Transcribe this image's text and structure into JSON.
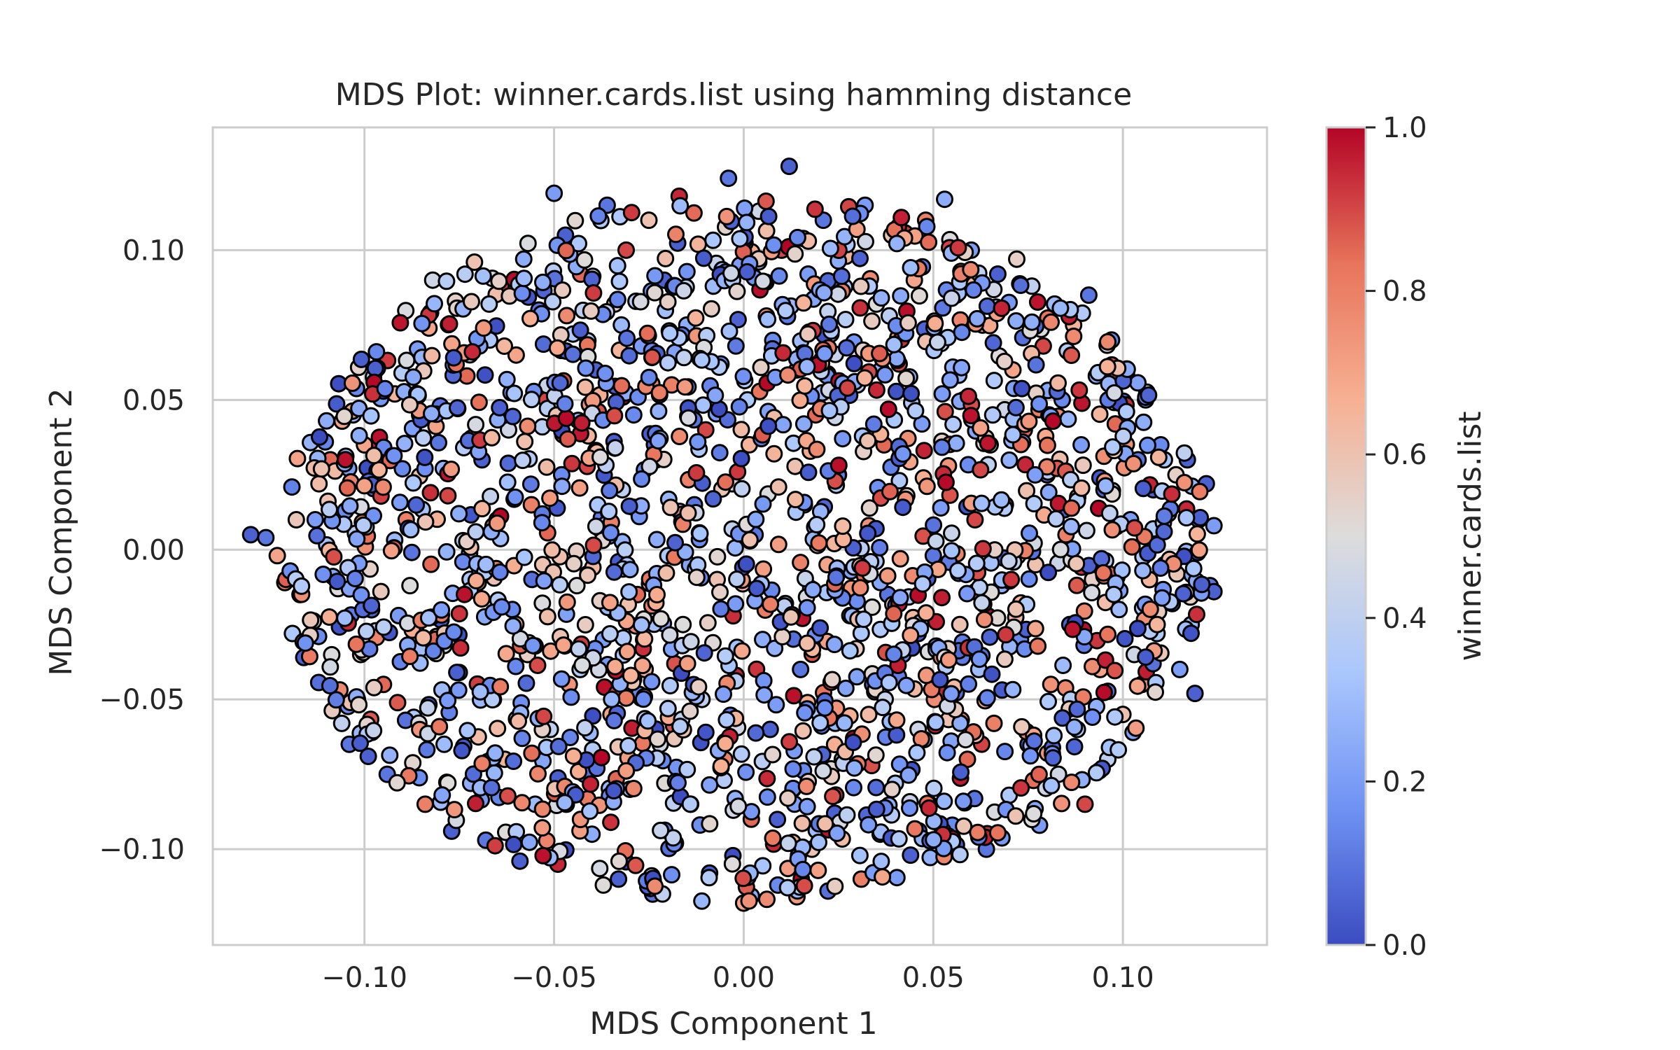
{
  "chart_data": {
    "type": "scatter",
    "title": "MDS Plot: winner.cards.list using hamming distance",
    "xlabel": "MDS Component 1",
    "ylabel": "MDS Component 2",
    "xlim": [
      -0.14,
      0.138
    ],
    "ylim": [
      -0.132,
      0.141
    ],
    "x_ticks": [
      -0.1,
      -0.05,
      0.0,
      0.05,
      0.1
    ],
    "x_tick_labels": [
      "−0.10",
      "−0.05",
      "0.00",
      "0.05",
      "0.10"
    ],
    "y_ticks": [
      -0.1,
      -0.05,
      0.0,
      0.05,
      0.1
    ],
    "y_tick_labels": [
      "−0.10",
      "−0.05",
      "0.00",
      "0.05",
      "0.10"
    ],
    "grid": true,
    "marker_edge_color": "#000000",
    "colorbar": {
      "label": "winner.cards.list",
      "colormap": "coolwarm",
      "range": [
        0,
        1
      ],
      "ticks": [
        0.0,
        0.2,
        0.4,
        0.6,
        0.8,
        1.0
      ],
      "tick_labels": [
        "0.0",
        "0.2",
        "0.4",
        "0.6",
        "0.8",
        "1.0"
      ],
      "stops": [
        "#3b4cc0",
        "#6f92f3",
        "#aac7fd",
        "#dddcdc",
        "#f7b093",
        "#e7745b",
        "#b40426"
      ]
    },
    "point_count_approx": 2000,
    "points": [
      [
        -0.13,
        0.005,
        0.05
      ],
      [
        -0.126,
        0.004,
        0.1
      ],
      [
        -0.123,
        -0.002,
        0.7
      ],
      [
        -0.121,
        -0.011,
        0.8
      ],
      [
        -0.119,
        -0.028,
        0.35
      ],
      [
        -0.117,
        -0.015,
        0.75
      ],
      [
        -0.116,
        -0.036,
        0.05
      ],
      [
        -0.113,
        0.01,
        0.2
      ],
      [
        -0.112,
        0.022,
        0.62
      ],
      [
        -0.11,
        0.043,
        0.25
      ],
      [
        -0.109,
        0.03,
        0.85
      ],
      [
        -0.107,
        -0.013,
        0.5
      ],
      [
        -0.106,
        -0.058,
        0.4
      ],
      [
        -0.105,
        0.013,
        0.15
      ],
      [
        -0.104,
        -0.065,
        0.1
      ],
      [
        -0.103,
        0.045,
        0.3
      ],
      [
        -0.101,
        -0.035,
        0.55
      ],
      [
        -0.1,
        0.035,
        0.7
      ],
      [
        -0.099,
        -0.069,
        0.05
      ],
      [
        -0.097,
        0.06,
        0.4
      ],
      [
        -0.096,
        0.035,
        0.95
      ],
      [
        -0.095,
        -0.045,
        0.85
      ],
      [
        -0.094,
        -0.075,
        0.1
      ],
      [
        -0.092,
        0.052,
        0.65
      ],
      [
        -0.091,
        -0.022,
        0.2
      ],
      [
        -0.09,
        0.027,
        0.15
      ],
      [
        -0.089,
        0.01,
        0.8
      ],
      [
        -0.088,
        -0.012,
        0.5
      ],
      [
        -0.087,
        -0.056,
        0.35
      ],
      [
        -0.086,
        0.067,
        0.2
      ],
      [
        -0.084,
        -0.085,
        0.8
      ],
      [
        -0.083,
        0.074,
        0.7
      ],
      [
        -0.082,
        0.09,
        0.45
      ],
      [
        -0.081,
        -0.029,
        0.65
      ],
      [
        -0.08,
        0.048,
        0.1
      ],
      [
        -0.079,
        -0.065,
        0.3
      ],
      [
        -0.078,
        0.018,
        0.9
      ],
      [
        -0.077,
        -0.094,
        0.05
      ],
      [
        -0.076,
        0.083,
        0.55
      ],
      [
        -0.075,
        -0.041,
        0.15
      ],
      [
        -0.074,
        0.003,
        0.4
      ],
      [
        -0.073,
        0.058,
        0.85
      ],
      [
        -0.072,
        -0.078,
        0.25
      ],
      [
        -0.071,
        0.096,
        0.6
      ],
      [
        -0.07,
        -0.011,
        0.75
      ],
      [
        -0.069,
        0.03,
        0.05
      ],
      [
        -0.068,
        -0.097,
        0.1
      ],
      [
        -0.067,
        0.07,
        0.35
      ],
      [
        -0.066,
        -0.05,
        0.8
      ],
      [
        -0.065,
        0.01,
        0.2
      ],
      [
        -0.064,
        0.088,
        0.9
      ],
      [
        -0.063,
        -0.07,
        0.65
      ],
      [
        -0.062,
        0.04,
        0.45
      ],
      [
        -0.061,
        -0.02,
        0.15
      ],
      [
        -0.06,
        0.065,
        0.7
      ],
      [
        -0.059,
        -0.104,
        0.05
      ],
      [
        -0.058,
        0.097,
        0.25
      ],
      [
        -0.057,
        -0.035,
        0.55
      ],
      [
        -0.056,
        0.015,
        0.8
      ],
      [
        -0.055,
        -0.085,
        0.3
      ],
      [
        -0.054,
        0.08,
        0.1
      ],
      [
        -0.053,
        -0.005,
        0.6
      ],
      [
        -0.052,
        0.05,
        0.9
      ],
      [
        -0.051,
        -0.06,
        0.4
      ],
      [
        -0.05,
        0.119,
        0.2
      ],
      [
        -0.049,
        -0.105,
        0.95
      ],
      [
        -0.048,
        0.025,
        0.15
      ],
      [
        -0.047,
        0.105,
        0.05
      ],
      [
        -0.046,
        -0.045,
        0.75
      ],
      [
        -0.045,
        0.072,
        0.35
      ],
      [
        -0.044,
        -0.012,
        0.5
      ],
      [
        -0.043,
        0.092,
        0.85
      ],
      [
        -0.042,
        -0.075,
        0.1
      ],
      [
        -0.041,
        0.038,
        0.65
      ],
      [
        -0.04,
        -0.095,
        0.25
      ],
      [
        -0.039,
        0.06,
        0.05
      ],
      [
        -0.038,
        0.007,
        0.8
      ],
      [
        -0.037,
        -0.03,
        0.2
      ],
      [
        -0.036,
        0.115,
        0.1
      ],
      [
        -0.035,
        -0.055,
        0.7
      ],
      [
        -0.034,
        0.082,
        0.55
      ],
      [
        -0.033,
        -0.11,
        0.05
      ],
      [
        -0.032,
        0.02,
        0.4
      ],
      [
        -0.031,
        0.1,
        0.9
      ],
      [
        -0.03,
        -0.08,
        0.3
      ],
      [
        -0.029,
        0.045,
        0.15
      ],
      [
        -0.028,
        -0.015,
        0.85
      ],
      [
        -0.027,
        0.068,
        0.2
      ],
      [
        -0.026,
        -0.04,
        0.65
      ],
      [
        -0.025,
        0.11,
        0.6
      ],
      [
        -0.024,
        -0.115,
        0.1
      ],
      [
        -0.023,
        0.03,
        0.75
      ],
      [
        -0.022,
        -0.065,
        0.45
      ],
      [
        -0.021,
        0.09,
        0.05
      ],
      [
        -0.02,
        -0.002,
        0.35
      ],
      [
        -0.019,
        0.055,
        0.8
      ],
      [
        -0.018,
        -0.098,
        0.15
      ],
      [
        -0.017,
        0.118,
        0.95
      ],
      [
        -0.016,
        -0.025,
        0.5
      ],
      [
        -0.015,
        0.075,
        0.25
      ],
      [
        -0.014,
        -0.085,
        0.7
      ],
      [
        -0.013,
        0.015,
        0.1
      ],
      [
        -0.012,
        0.102,
        0.65
      ],
      [
        -0.011,
        -0.05,
        0.4
      ],
      [
        -0.01,
        0.04,
        0.9
      ],
      [
        -0.009,
        -0.108,
        0.05
      ],
      [
        -0.008,
        0.088,
        0.3
      ],
      [
        -0.007,
        -0.01,
        0.6
      ],
      [
        -0.006,
        0.062,
        0.15
      ],
      [
        -0.005,
        -0.07,
        0.8
      ],
      [
        -0.004,
        0.124,
        0.1
      ],
      [
        -0.003,
        0.022,
        0.55
      ],
      [
        -0.002,
        -0.042,
        0.95
      ],
      [
        -0.001,
        0.095,
        0.2
      ],
      [
        0.0,
        -0.118,
        0.7
      ],
      [
        0.001,
        0.05,
        0.35
      ],
      [
        0.002,
        -0.09,
        0.85
      ],
      [
        0.003,
        0.005,
        0.1
      ],
      [
        0.004,
        0.113,
        0.45
      ],
      [
        0.005,
        -0.03,
        0.25
      ],
      [
        0.006,
        0.078,
        0.75
      ],
      [
        0.007,
        -0.06,
        0.05
      ],
      [
        0.008,
        0.032,
        0.65
      ],
      [
        0.009,
        -0.112,
        0.15
      ],
      [
        0.01,
        0.1,
        0.9
      ],
      [
        0.011,
        -0.018,
        0.4
      ],
      [
        0.012,
        0.128,
        0.05
      ],
      [
        0.013,
        -0.08,
        0.3
      ],
      [
        0.014,
        0.06,
        0.8
      ],
      [
        0.015,
        -0.04,
        0.1
      ],
      [
        0.016,
        0.015,
        0.55
      ],
      [
        0.017,
        0.092,
        0.2
      ],
      [
        0.018,
        -0.1,
        0.6
      ],
      [
        0.019,
        0.045,
        0.85
      ],
      [
        0.02,
        -0.055,
        0.35
      ],
      [
        0.021,
        0.11,
        0.1
      ],
      [
        0.022,
        -0.005,
        0.7
      ],
      [
        0.023,
        0.072,
        0.45
      ],
      [
        0.024,
        -0.088,
        0.05
      ],
      [
        0.025,
        0.025,
        0.9
      ],
      [
        0.026,
        -0.07,
        0.25
      ],
      [
        0.027,
        0.098,
        0.65
      ],
      [
        0.028,
        -0.022,
        0.15
      ],
      [
        0.029,
        -0.063,
        1.0
      ],
      [
        0.03,
        0.055,
        0.4
      ],
      [
        0.031,
        -0.11,
        0.8
      ],
      [
        0.032,
        0.115,
        0.2
      ],
      [
        0.033,
        0.008,
        0.75
      ],
      [
        0.034,
        -0.045,
        0.05
      ],
      [
        0.035,
        0.082,
        0.5
      ],
      [
        0.036,
        -0.095,
        0.3
      ],
      [
        0.037,
        0.035,
        0.85
      ],
      [
        0.038,
        -0.015,
        0.1
      ],
      [
        0.039,
        0.105,
        0.6
      ],
      [
        0.04,
        -0.078,
        0.35
      ],
      [
        0.041,
        0.062,
        0.9
      ],
      [
        0.042,
        -0.035,
        0.15
      ],
      [
        0.043,
        0.018,
        0.55
      ],
      [
        0.044,
        -0.102,
        0.05
      ],
      [
        0.045,
        0.09,
        0.7
      ],
      [
        0.046,
        -0.06,
        0.45
      ],
      [
        0.047,
        0.042,
        0.2
      ],
      [
        0.048,
        0.11,
        0.8
      ],
      [
        0.049,
        -0.085,
        0.65
      ],
      [
        0.05,
        -0.002,
        0.1
      ],
      [
        0.051,
        0.07,
        0.35
      ],
      [
        0.052,
        -0.048,
        0.95
      ],
      [
        0.053,
        0.117,
        0.25
      ],
      [
        0.054,
        0.028,
        0.75
      ],
      [
        0.055,
        -0.092,
        0.15
      ],
      [
        0.056,
        0.085,
        0.05
      ],
      [
        0.057,
        -0.025,
        0.6
      ],
      [
        0.058,
        0.05,
        0.4
      ],
      [
        0.059,
        -0.07,
        0.85
      ],
      [
        0.06,
        0.1,
        0.2
      ],
      [
        0.061,
        0.01,
        0.9
      ],
      [
        0.062,
        -0.04,
        0.3
      ],
      [
        0.063,
        0.075,
        0.65
      ],
      [
        0.064,
        -0.1,
        0.1
      ],
      [
        0.065,
        0.035,
        0.5
      ],
      [
        0.066,
        -0.058,
        0.8
      ],
      [
        0.067,
        0.092,
        0.05
      ],
      [
        0.068,
        -0.012,
        0.25
      ],
      [
        0.069,
        0.015,
        0.98
      ],
      [
        0.07,
        -0.082,
        0.35
      ],
      [
        0.071,
        0.06,
        0.7
      ],
      [
        0.072,
        0.097,
        0.55
      ],
      [
        0.073,
        -0.03,
        0.15
      ],
      [
        0.074,
        0.04,
        0.85
      ],
      [
        0.075,
        -0.065,
        0.05
      ],
      [
        0.076,
        0.088,
        0.4
      ],
      [
        0.077,
        -0.005,
        0.6
      ],
      [
        0.078,
        -0.092,
        0.2
      ],
      [
        0.079,
        0.068,
        0.9
      ],
      [
        0.08,
        0.025,
        0.1
      ],
      [
        0.081,
        -0.045,
        0.75
      ],
      [
        0.082,
        0.082,
        0.3
      ],
      [
        0.083,
        -0.075,
        0.45
      ],
      [
        0.084,
        0.05,
        0.15
      ],
      [
        0.085,
        0.005,
        0.8
      ],
      [
        0.086,
        -0.025,
        0.05
      ],
      [
        0.087,
        0.075,
        0.65
      ],
      [
        0.088,
        -0.06,
        0.35
      ],
      [
        0.089,
        0.035,
        0.2
      ],
      [
        0.09,
        -0.085,
        0.9
      ],
      [
        0.091,
        0.085,
        0.1
      ],
      [
        0.092,
        -0.01,
        0.55
      ],
      [
        0.093,
        0.058,
        0.25
      ],
      [
        0.094,
        -0.04,
        0.7
      ],
      [
        0.095,
        0.02,
        0.05
      ],
      [
        0.096,
        -0.07,
        0.4
      ],
      [
        0.097,
        0.07,
        0.15
      ],
      [
        0.098,
        0.042,
        0.85
      ],
      [
        0.099,
        -0.02,
        0.3
      ],
      [
        0.1,
        -0.055,
        0.6
      ],
      [
        0.101,
        0.058,
        0.05
      ],
      [
        0.102,
        0.01,
        0.2
      ],
      [
        0.103,
        -0.035,
        0.45
      ],
      [
        0.104,
        0.03,
        0.1
      ],
      [
        0.105,
        -0.045,
        0.75
      ],
      [
        0.106,
        0.05,
        0.25
      ],
      [
        0.107,
        -0.01,
        0.65
      ],
      [
        0.108,
        0.02,
        0.05
      ],
      [
        0.109,
        -0.028,
        0.35
      ],
      [
        0.11,
        0.035,
        0.15
      ],
      [
        0.111,
        -0.005,
        0.8
      ],
      [
        0.112,
        0.012,
        0.4
      ],
      [
        0.113,
        -0.018,
        0.1
      ],
      [
        0.114,
        0.025,
        0.55
      ],
      [
        0.115,
        -0.04,
        0.2
      ],
      [
        0.117,
        0.03,
        0.05
      ],
      [
        0.118,
        -0.025,
        0.3
      ],
      [
        0.119,
        -0.048,
        0.05
      ],
      [
        0.12,
        0.01,
        0.15
      ],
      [
        0.122,
        0.022,
        0.05
      ],
      [
        0.123,
        -0.012,
        0.1
      ],
      [
        0.124,
        -0.014,
        0.05
      ],
      [
        0.124,
        0.008,
        0.2
      ]
    ]
  }
}
